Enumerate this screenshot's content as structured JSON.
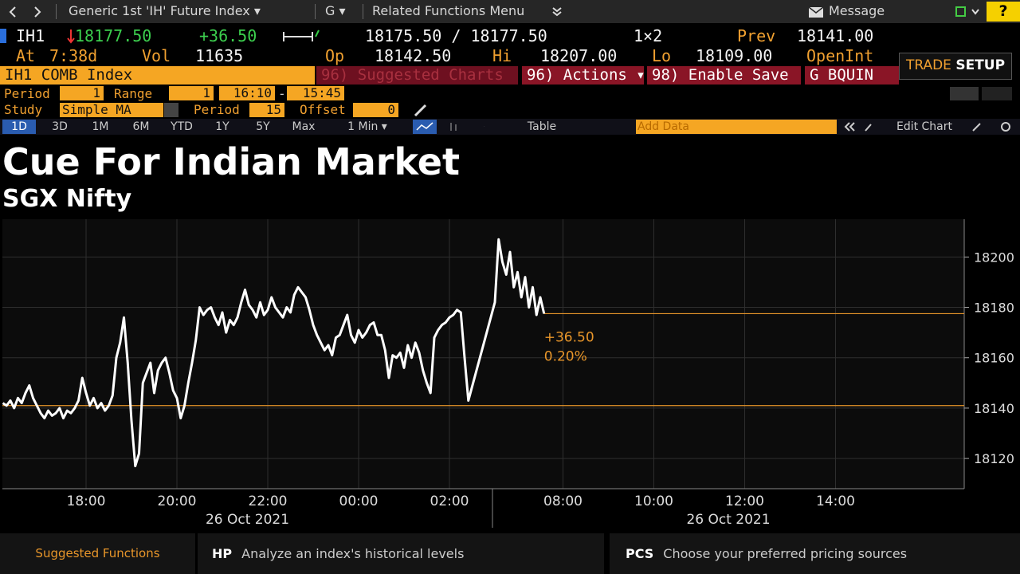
{
  "top_bar": {
    "function_title": "Generic 1st 'IH' Future Index ▾",
    "g_menu": "G ▾",
    "related_menu": "Related Functions Menu",
    "message": "Message",
    "help": "?"
  },
  "quote": {
    "ticker": "IH1",
    "last": "18177.50",
    "change": "+36.50",
    "bid_ask": "18175.50 / 18177.50",
    "size": "1×2",
    "prev_label": "Prev",
    "prev": "18141.00",
    "at_label": "At",
    "time": "7:38d",
    "vol_label": "Vol",
    "vol": "11635",
    "open_label": "Op",
    "open": "18142.50",
    "high_label": "Hi",
    "high": "18207.00",
    "low_label": "Lo",
    "low": "18109.00",
    "open_interest_label": "OpenInt"
  },
  "security_bar": {
    "security": "IH1 COMB Index",
    "suggested_charts": "96) Suggested Charts",
    "actions": "96) Actions ▾",
    "enable_save": "98) Enable Save",
    "g_code": "G BQUIN",
    "trade": "TRADE",
    "setup": "SETUP"
  },
  "settings": {
    "period_label": "Period",
    "period": "1",
    "range_label": "Range",
    "range_count": "1",
    "range_start": "16:10",
    "range_sep": "-",
    "range_end": "15:45",
    "study_label": "Study",
    "study": "Simple MA",
    "study_period_label": "Period",
    "study_period": "15",
    "offset_label": "Offset",
    "offset": "0"
  },
  "tabs": {
    "ranges": [
      "1D",
      "3D",
      "1M",
      "6M",
      "YTD",
      "1Y",
      "5Y",
      "Max"
    ],
    "active_index": 0,
    "interval": "1 Min ▾",
    "table": "Table",
    "add_data": "Add Data",
    "edit_chart": "Edit Chart"
  },
  "chart_data": {
    "type": "line",
    "title": "Cue For Indian Market",
    "subtitle": "SGX Nifty",
    "color": "#ffffff",
    "x": [
      "16:10",
      "16:15",
      "16:20",
      "16:25",
      "16:30",
      "16:35",
      "16:40",
      "16:45",
      "16:50",
      "16:55",
      "17:00",
      "17:05",
      "17:10",
      "17:15",
      "17:20",
      "17:25",
      "17:30",
      "17:35",
      "17:40",
      "17:45",
      "17:50",
      "17:55",
      "18:00",
      "18:05",
      "18:10",
      "18:15",
      "18:20",
      "18:25",
      "18:30",
      "18:35",
      "18:40",
      "18:45",
      "18:50",
      "18:55",
      "19:00",
      "19:05",
      "19:10",
      "19:15",
      "19:20",
      "19:25",
      "19:30",
      "19:35",
      "19:40",
      "19:45",
      "19:50",
      "19:55",
      "20:00",
      "20:05",
      "20:10",
      "20:15",
      "20:20",
      "20:25",
      "20:30",
      "20:35",
      "20:40",
      "20:45",
      "20:50",
      "20:55",
      "21:00",
      "21:05",
      "21:10",
      "21:15",
      "21:20",
      "21:25",
      "21:30",
      "21:35",
      "21:40",
      "21:45",
      "21:50",
      "21:55",
      "22:00",
      "22:05",
      "22:10",
      "22:15",
      "22:20",
      "22:25",
      "22:30",
      "22:35",
      "22:40",
      "22:45",
      "22:50",
      "22:55",
      "23:00",
      "23:05",
      "23:10",
      "23:15",
      "23:20",
      "23:25",
      "23:30",
      "23:35",
      "23:40",
      "23:45",
      "23:50",
      "23:55",
      "00:00",
      "00:05",
      "00:10",
      "00:15",
      "00:20",
      "00:25",
      "00:30",
      "00:35",
      "00:40",
      "00:45",
      "00:50",
      "00:55",
      "01:00",
      "01:05",
      "01:10",
      "01:15",
      "01:20",
      "01:25",
      "01:30",
      "01:35",
      "01:40",
      "01:45",
      "01:50",
      "01:55",
      "02:00",
      "02:05",
      "02:10",
      "02:15",
      "02:20",
      "02:25",
      "06:30",
      "06:35",
      "06:40",
      "06:45",
      "06:50",
      "06:55",
      "07:00",
      "07:05",
      "07:10",
      "07:15",
      "07:20",
      "07:25",
      "07:30",
      "07:35"
    ],
    "values": [
      18142,
      18141,
      18143,
      18140,
      18144,
      18142,
      18146,
      18149,
      18144,
      18141,
      18138,
      18136,
      18139,
      18137,
      18138,
      18140,
      18136,
      18139,
      18138,
      18140,
      18143,
      18152,
      18146,
      18141,
      18144,
      18140,
      18142,
      18139,
      18141,
      18145,
      18160,
      18166,
      18176,
      18158,
      18135,
      18117,
      18122,
      18150,
      18154,
      18158,
      18146,
      18155,
      18158,
      18160,
      18154,
      18147,
      18144,
      18136,
      18141,
      18150,
      18158,
      18167,
      18180,
      18177,
      18179,
      18180,
      18176,
      18173,
      18178,
      18170,
      18175,
      18173,
      18176,
      18182,
      18187,
      18181,
      18179,
      18176,
      18182,
      18177,
      18179,
      18184,
      18180,
      18178,
      18176,
      18180,
      18178,
      18185,
      18188,
      18186,
      18184,
      18179,
      18173,
      18169,
      18166,
      18163,
      18165,
      18161,
      18168,
      18169,
      18173,
      18177,
      18169,
      18166,
      18171,
      18168,
      18170,
      18173,
      18174,
      18169,
      18169,
      18163,
      18152,
      18161,
      18160,
      18162,
      18156,
      18165,
      18160,
      18166,
      18162,
      18155,
      18150,
      18146,
      18168,
      18171,
      18173,
      18174,
      18176,
      18177,
      18179,
      18178,
      18160,
      18143,
      18182,
      18207,
      18198,
      18193,
      18202,
      18188,
      18194,
      18184,
      18192,
      18180,
      18188,
      18177,
      18184,
      18177.5
    ],
    "ylim": [
      18108,
      18215
    ],
    "yticks": [
      18120,
      18140,
      18160,
      18180,
      18200
    ],
    "xticks": [
      "18:00",
      "20:00",
      "22:00",
      "00:00",
      "02:00",
      "08:00",
      "10:00",
      "12:00",
      "14:00"
    ],
    "x_date_labels": [
      "26 Oct 2021",
      "26 Oct 2021"
    ],
    "hlines": [
      18141,
      18177.5
    ],
    "hline_color": "#e8962a",
    "annotations": [
      "+36.50",
      "0.20%"
    ],
    "grid": true
  },
  "footer": {
    "suggested": "Suggested Functions",
    "functions": [
      {
        "code": "HP",
        "description": "Analyze an index's historical levels"
      },
      {
        "code": "PCS",
        "description": "Choose your preferred pricing sources"
      }
    ]
  }
}
